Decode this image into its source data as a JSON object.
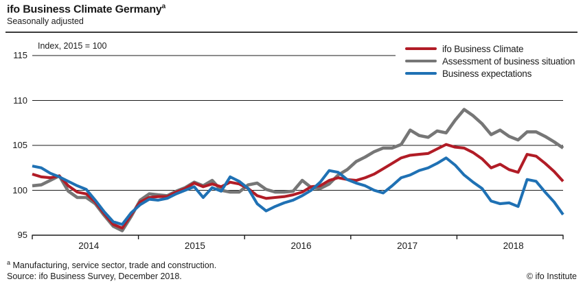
{
  "header": {
    "title": "ifo Business Climate Germany",
    "title_superscript": "a",
    "subtitle": "Seasonally adjusted"
  },
  "chart_data": {
    "type": "line",
    "title": "ifo Business Climate Germany",
    "axis_note": "Index, 2015 = 100",
    "x_start": "2014-01",
    "x_end": "2018-12",
    "x_interval": "monthly",
    "x_year_labels": [
      "2014",
      "2015",
      "2016",
      "2017",
      "2018"
    ],
    "y_ticks": [
      115,
      110,
      105,
      100,
      95
    ],
    "ylim": [
      95,
      116.5
    ],
    "grid": "horizontal",
    "legend_position": "top-right",
    "series": [
      {
        "name": "ifo Business Climate",
        "color": "#b11c26",
        "values": [
          101.8,
          101.5,
          101.4,
          101.6,
          100.5,
          99.8,
          99.6,
          98.7,
          97.4,
          96.2,
          95.8,
          97.3,
          98.7,
          99.2,
          99.3,
          99.3,
          99.8,
          100.2,
          100.8,
          100.4,
          100.7,
          100.4,
          100.9,
          100.7,
          100.2,
          99.4,
          99.1,
          99.2,
          99.3,
          99.5,
          99.8,
          100.4,
          100.5,
          101.1,
          101.4,
          101.2,
          101.1,
          101.4,
          101.8,
          102.4,
          103.0,
          103.6,
          103.9,
          104.0,
          104.1,
          104.6,
          105.1,
          104.8,
          104.7,
          104.2,
          103.5,
          102.5,
          102.9,
          102.3,
          102.0,
          104.0,
          103.8,
          103.0,
          102.1,
          101.0
        ]
      },
      {
        "name": "Assessment of business situation",
        "color": "#767676",
        "values": [
          100.5,
          100.6,
          101.1,
          101.6,
          99.9,
          99.2,
          99.2,
          98.5,
          97.2,
          96.0,
          95.5,
          97.1,
          98.9,
          99.6,
          99.5,
          99.4,
          99.9,
          100.3,
          100.9,
          100.5,
          101.1,
          100.0,
          99.8,
          99.8,
          100.6,
          100.8,
          100.1,
          99.8,
          99.8,
          99.9,
          101.1,
          100.3,
          100.2,
          100.7,
          101.7,
          102.3,
          103.2,
          103.7,
          104.3,
          104.7,
          104.7,
          105.1,
          106.7,
          106.1,
          105.9,
          106.6,
          106.4,
          107.8,
          109.0,
          108.3,
          107.4,
          106.2,
          106.7,
          106.0,
          105.6,
          106.5,
          106.5,
          106.0,
          105.4,
          104.7
        ]
      },
      {
        "name": "Business expectations",
        "color": "#1f71b4",
        "values": [
          102.7,
          102.5,
          101.9,
          101.5,
          101.0,
          100.5,
          100.1,
          98.9,
          97.6,
          96.5,
          96.2,
          97.5,
          98.4,
          99.0,
          98.9,
          99.1,
          99.6,
          100.0,
          100.4,
          99.2,
          100.3,
          99.9,
          101.5,
          101.0,
          100.2,
          98.5,
          97.7,
          98.2,
          98.6,
          98.9,
          99.4,
          100.0,
          100.9,
          102.2,
          102.0,
          101.2,
          100.8,
          100.5,
          100.0,
          99.7,
          100.5,
          101.4,
          101.7,
          102.2,
          102.5,
          103.0,
          103.6,
          102.8,
          101.7,
          100.9,
          100.2,
          98.8,
          98.5,
          98.6,
          98.2,
          101.2,
          101.0,
          99.8,
          98.7,
          97.3
        ]
      }
    ]
  },
  "footer": {
    "footnote_marker": "a",
    "footnote_text": "Manufacturing, service sector, trade and construction.",
    "source": "Source: ifo Business Survey, December 2018.",
    "copyright": "© ifo Institute"
  }
}
